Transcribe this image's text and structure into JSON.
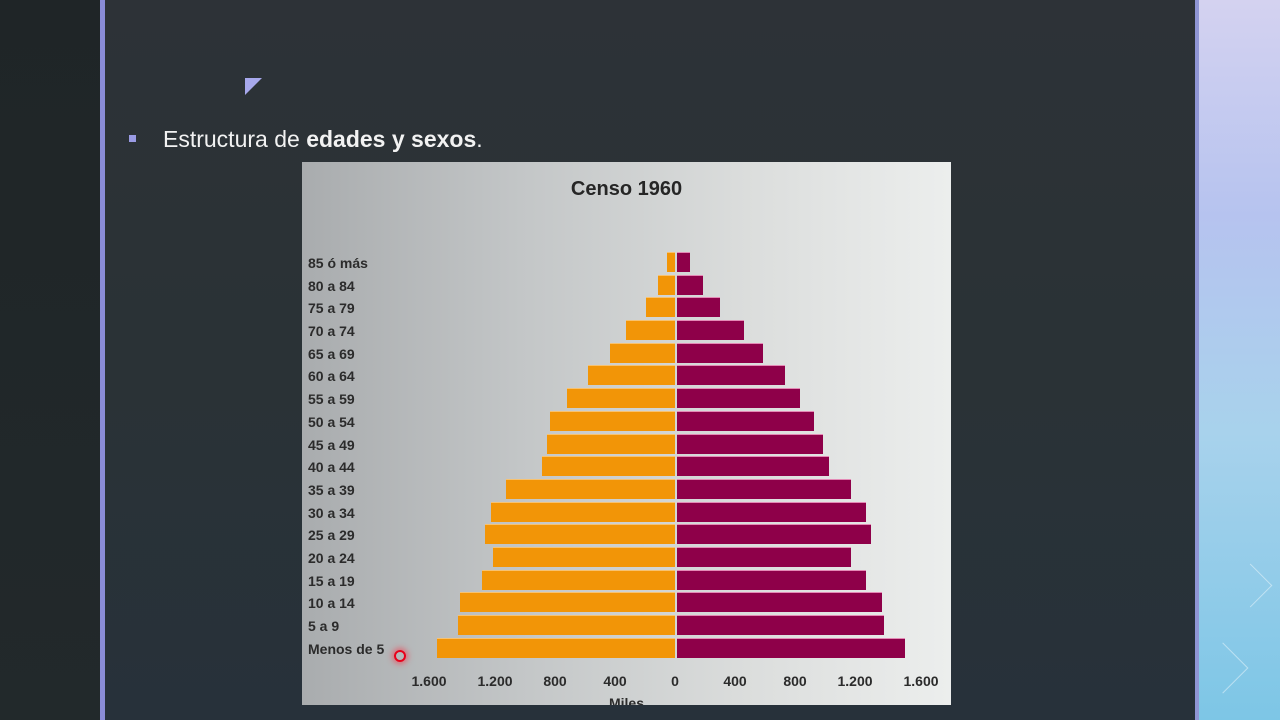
{
  "slide": {
    "bullet_text_plain": "Estructura de ",
    "bullet_text_bold": "edades y sexos",
    "bullet_text_end": ".",
    "colors": {
      "background": "#2b3236",
      "accent": "#8a8cd6",
      "female_bar": "#f29507",
      "male_bar": "#8e0049"
    }
  },
  "chart_data": {
    "type": "bar",
    "orientation": "horizontal-population-pyramid",
    "title": "Censo 1960",
    "xlabel": "Miles",
    "ylabel": "",
    "xlim": [
      -1600,
      1600
    ],
    "x_ticks": [
      "1.600",
      "1.200",
      "800",
      "400",
      "0",
      "400",
      "800",
      "1.200",
      "1.600"
    ],
    "x_tick_values": [
      -1600,
      -1200,
      -800,
      -400,
      0,
      400,
      800,
      1200,
      1600
    ],
    "grid": false,
    "legend": null,
    "categories": [
      "85 ó más",
      "80 a 84",
      "75 a 79",
      "70 a 74",
      "65 a 69",
      "60 a 64",
      "55 a 59",
      "50 a 54",
      "45 a 49",
      "40 a 44",
      "35 a 39",
      "30 a 34",
      "25 a 29",
      "20 a 24",
      "15 a 19",
      "10 a 14",
      "5 a 9",
      "Menos de 5"
    ],
    "series": [
      {
        "name": "left (orange)",
        "color": "#f29507",
        "values": [
          55,
          115,
          195,
          330,
          435,
          580,
          720,
          835,
          855,
          885,
          1125,
          1225,
          1265,
          1215,
          1285,
          1435,
          1445,
          1585
        ]
      },
      {
        "name": "right (crimson)",
        "color": "#8e0049",
        "values": [
          85,
          175,
          285,
          445,
          570,
          720,
          820,
          915,
          975,
          1015,
          1160,
          1260,
          1295,
          1160,
          1260,
          1365,
          1380,
          1520
        ]
      }
    ]
  }
}
